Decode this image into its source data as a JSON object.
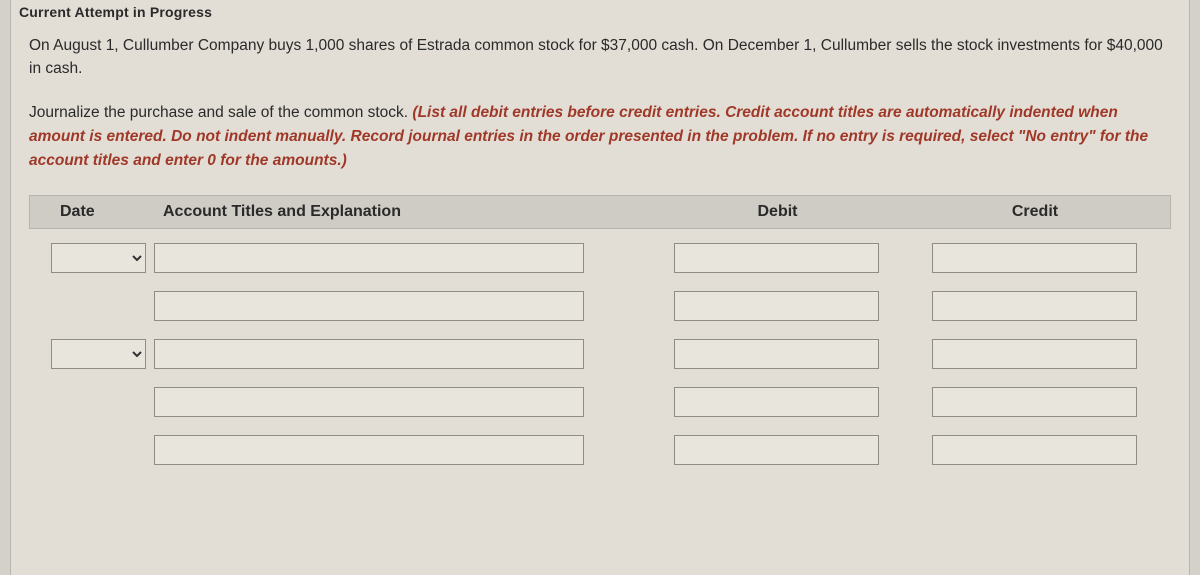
{
  "attempt_header": "Current Attempt in Progress",
  "problem": "On August 1, Cullumber Company buys 1,000 shares of Estrada common stock for $37,000 cash. On December 1, Cullumber sells the stock investments for $40,000 in cash.",
  "instruction_lead": "Journalize the purchase and sale of the common stock. ",
  "instruction_italic": "(List all debit entries before credit entries. Credit account titles are automatically indented when amount is entered. Do not indent manually. Record journal entries in the order presented in the problem. If no entry is required, select \"No entry\" for the account titles and enter 0 for the amounts.)",
  "table": {
    "headers": {
      "date": "Date",
      "account": "Account Titles and Explanation",
      "debit": "Debit",
      "credit": "Credit"
    },
    "rows": [
      {
        "has_date": true,
        "date": "",
        "account": "",
        "debit": "",
        "credit": ""
      },
      {
        "has_date": false,
        "account": "",
        "debit": "",
        "credit": ""
      },
      {
        "has_date": true,
        "date": "",
        "account": "",
        "debit": "",
        "credit": ""
      },
      {
        "has_date": false,
        "account": "",
        "debit": "",
        "credit": ""
      },
      {
        "has_date": false,
        "account": "",
        "debit": "",
        "credit": ""
      }
    ]
  },
  "colors": {
    "page_bg": "#e2ded6",
    "header_bg": "#cfccc5",
    "input_bg": "#e8e5dd",
    "border": "#8f8c85",
    "italic_red": "#a03828",
    "text": "#2a2a2a"
  }
}
